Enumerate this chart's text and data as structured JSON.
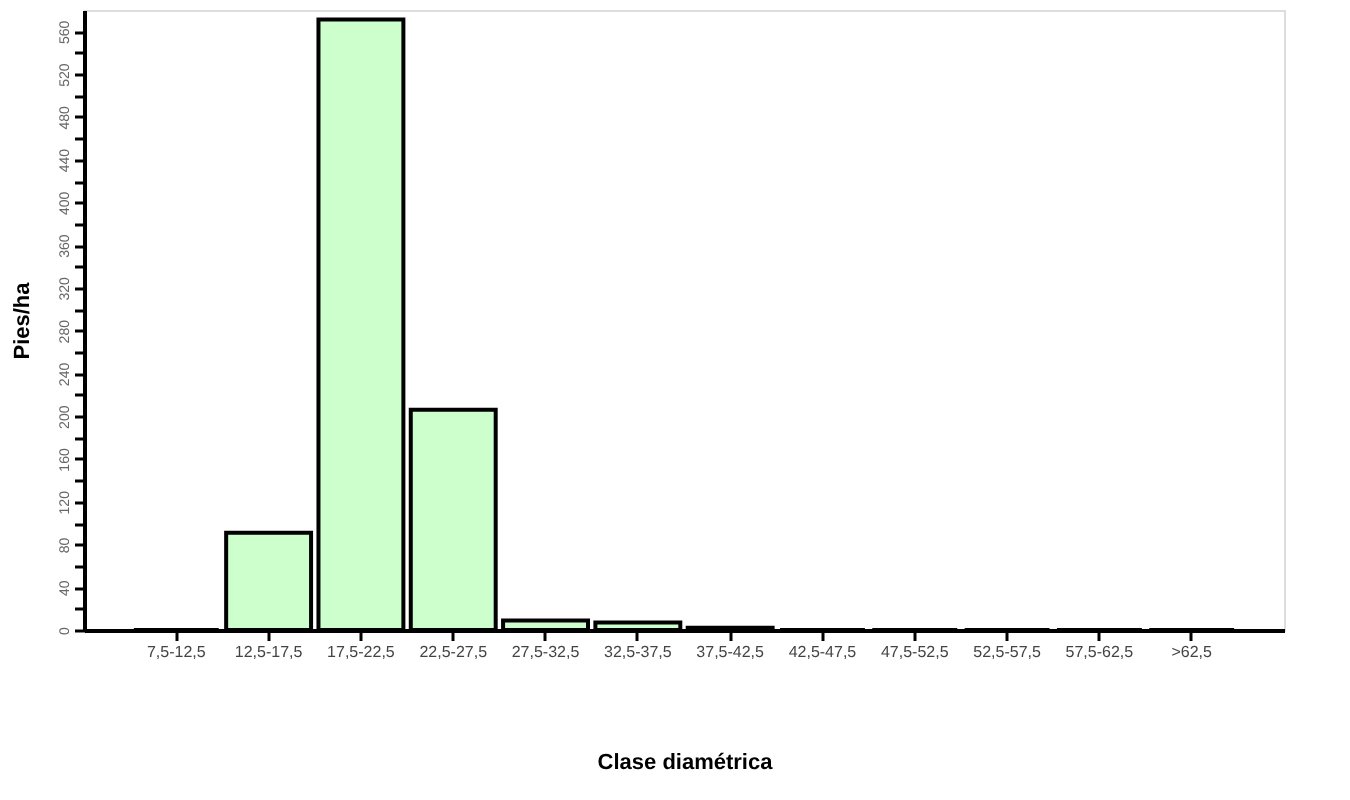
{
  "chart_data": {
    "type": "bar",
    "xlabel": "Clase diamétrica",
    "ylabel": "Pies/ha",
    "categories": [
      "7,5-12,5",
      "12,5-17,5",
      "17,5-22,5",
      "22,5-27,5",
      "27,5-32,5",
      "32,5-37,5",
      "37,5-42,5",
      "42,5-47,5",
      "47,5-52,5",
      "52,5-57,5",
      "57,5-62,5",
      ">62,5"
    ],
    "values": [
      0,
      91,
      571,
      206,
      9,
      7,
      2,
      0,
      0,
      0,
      0,
      0
    ],
    "color": "#ccffcc",
    "ylim": [
      0,
      580
    ],
    "yticks": [
      0,
      {
        "value": 20,
        "label": null
      },
      40,
      {
        "value": 60,
        "label": null
      },
      80,
      {
        "value": 100,
        "label": null
      },
      120,
      {
        "value": 140,
        "label": null
      },
      160,
      {
        "value": 180,
        "label": null
      },
      200,
      {
        "value": 220,
        "label": null
      },
      240,
      {
        "value": 260,
        "label": null
      },
      280,
      {
        "value": 300,
        "label": null
      },
      320,
      {
        "value": 340,
        "label": null
      },
      360,
      {
        "value": 380,
        "label": null
      },
      400,
      {
        "value": 420,
        "label": null
      },
      440,
      {
        "value": 460,
        "label": null
      },
      480,
      {
        "value": 500,
        "label": null
      },
      520,
      {
        "value": 540,
        "label": null
      },
      560
    ],
    "grid": false
  }
}
